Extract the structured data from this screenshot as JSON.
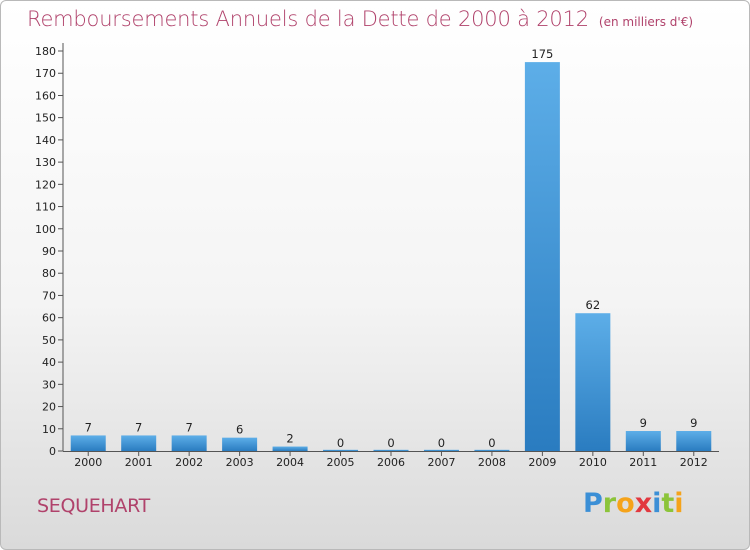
{
  "header": {
    "title": "Remboursements Annuels de la Dette de 2000 à 2012",
    "unit": "(en milliers d'€)"
  },
  "footer": {
    "commune": "SEQUEHART",
    "logo_letters": [
      {
        "char": "P",
        "color": "#3b8fd6"
      },
      {
        "char": "r",
        "color": "#8cc43a"
      },
      {
        "char": "o",
        "color": "#f5a31a"
      },
      {
        "char": "x",
        "color": "#e2383f"
      },
      {
        "char": "i",
        "color": "#3b8fd6"
      },
      {
        "char": "t",
        "color": "#8cc43a"
      },
      {
        "char": "i",
        "color": "#f5a31a"
      }
    ]
  },
  "chart_data": {
    "type": "bar",
    "categories": [
      "2000",
      "2001",
      "2002",
      "2003",
      "2004",
      "2005",
      "2006",
      "2007",
      "2008",
      "2009",
      "2010",
      "2011",
      "2012"
    ],
    "values": [
      7,
      7,
      7,
      6,
      2,
      0,
      0,
      0,
      0,
      175,
      62,
      9,
      9
    ],
    "value_labels": [
      "7",
      "7",
      "7",
      "6",
      "2",
      "0",
      "0",
      "0",
      "0",
      "175",
      "62",
      "9",
      "9"
    ],
    "ylim": [
      0,
      180
    ],
    "yticks": [
      0,
      10,
      20,
      30,
      40,
      50,
      60,
      70,
      80,
      90,
      100,
      110,
      120,
      130,
      140,
      150,
      160,
      170,
      180
    ],
    "bar_color_top": "#5daee8",
    "bar_color_bottom": "#2a7cc0",
    "grid": false
  }
}
